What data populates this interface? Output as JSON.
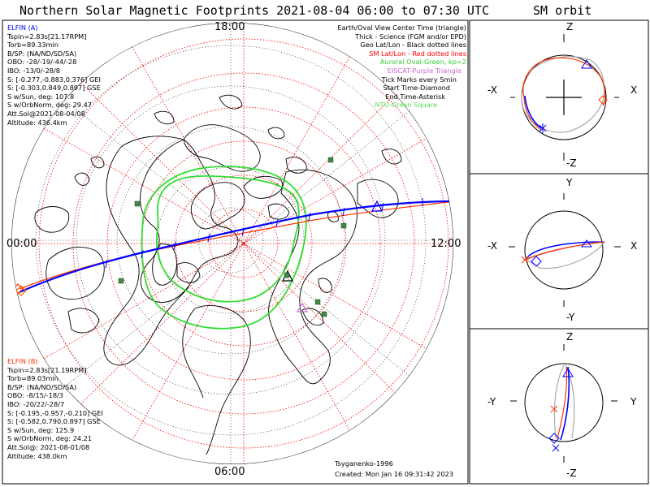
{
  "title": "Northern Solar Magnetic Footprints 2021-08-04 06:00 to 07:30 UTC",
  "orbit_title": "SM orbit",
  "colors": {
    "elfin_a": "#0000ff",
    "elfin_b": "#ff3300",
    "auroral_oval": "#33dd33",
    "sm_grid": "#ff0000",
    "eiscat": "#cc66cc",
    "ntu": "#55dd55",
    "station_marker": "#448844"
  },
  "map": {
    "label_top": "18:00",
    "label_left": "00:00",
    "label_right": "12:00",
    "label_bottom": "06:00"
  },
  "elfin_a": {
    "name": "ELFIN (A)",
    "lines": [
      "Tspin=2.83s[21.17RPM]",
      "Torb=89.33min",
      "B/SP: (NA/ND/SD/SA)",
      "OBO: -28/-19/-44/-28",
      "IBO: -13/0/-28/8",
      "S: [-0.277,-0.883,0.376] GEI",
      "S: [-0.303,0.849,0.897] GSE",
      "S w/Sun, deg: 107.8",
      "S w/OrbNorm, deg: 29.47",
      "Att.Sol@2021-08-04/08",
      "Altitude: 436.4km"
    ]
  },
  "elfin_b": {
    "name": "ELFIN (B)",
    "lines": [
      "Tspin=2.83s[21.19RPM]",
      "Torb=89.03min",
      "B/SP: (NA/ND/SD/SA)",
      "OBO: -8/15/-18/3",
      "IBO: -20/22/-28/7",
      "S: [-0.195,-0.957,-0.210] GEI",
      "S: [-0.582,0.790,0.897] GSE",
      "S w/Sun, deg: 125.9",
      "S w/OrbNorm, deg: 24.21",
      "Att.Sol@: 2021-08-01/08",
      "Altitude: 438.0km"
    ]
  },
  "legend": {
    "l1": "Earth/Oval View Center Time (triangle)",
    "l2": "Thick - Science (FGM and/or EPD)",
    "l3": "Geo Lat/Lon - Black dotted lines",
    "l4": "SM Lat/Lon - Red dotted lines",
    "l5": "Auroral Oval-Green, kp=2",
    "l6": "EISCAT-Purple Triangle",
    "l7": "Tick Marks every 5min",
    "l8": "Start Time-Diamond",
    "l9": "End Time-Asterisk",
    "l10": "NTU-Green Square"
  },
  "footer": {
    "credit": "Tsyganenko-1996",
    "created": "Created: Mon Jan 16 09:31:42 2023"
  },
  "orbit_panels": [
    {
      "top": "Z",
      "bottom": "-Z",
      "left": "-X",
      "right": "X"
    },
    {
      "top": "Y",
      "bottom": "-Y",
      "left": "-X",
      "right": "X"
    },
    {
      "top": "Z",
      "bottom": "-Z",
      "left": "-Y",
      "right": "Y"
    }
  ]
}
